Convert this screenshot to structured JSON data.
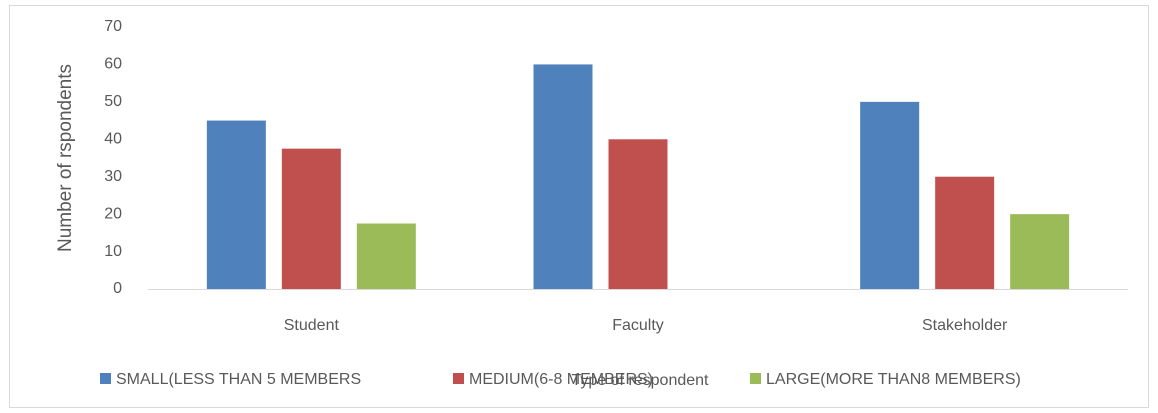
{
  "chart_data": {
    "type": "bar",
    "categories": [
      "Student",
      "Faculty",
      "Stakeholder"
    ],
    "series": [
      {
        "name": "SMALL(LESS THAN 5 MEMBERS",
        "color": "#4f81bd",
        "values": [
          45,
          60,
          50
        ]
      },
      {
        "name": "MEDIUM(6-8 MEMBERS)",
        "color": "#c0504d",
        "values": [
          37.5,
          40,
          30
        ]
      },
      {
        "name": "LARGE(MORE THAN8 MEMBERS)",
        "color": "#9bbb59",
        "values": [
          17.5,
          0,
          20
        ]
      }
    ],
    "x_label": "Type of respondent",
    "y_label": "Number of rspondents",
    "ylim": [
      0,
      70
    ],
    "yticks": [
      0,
      10,
      20,
      30,
      40,
      50,
      60,
      70
    ],
    "grid": false,
    "legend": "bottom"
  }
}
